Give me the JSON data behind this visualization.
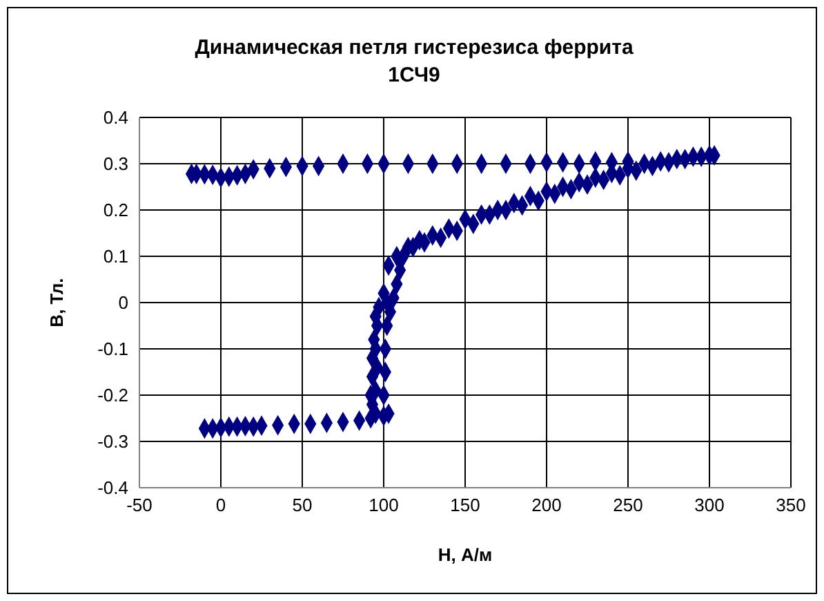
{
  "chart_data": {
    "type": "scatter",
    "title": "Динамическая петля гистерезиса феррита 1СЧ9",
    "xlabel": "H, А/м",
    "ylabel": "B, Тл.",
    "xlim": [
      -50,
      350
    ],
    "xticks": [
      -50,
      0,
      50,
      100,
      150,
      200,
      250,
      300,
      350
    ],
    "ylim": [
      -0.4,
      0.4
    ],
    "yticks": [
      -0.4,
      -0.3,
      -0.2,
      -0.1,
      0,
      0.1,
      0.2,
      0.3,
      0.4
    ],
    "grid": true,
    "legend": false,
    "marker": "diamond",
    "series": [
      {
        "color": "#000080",
        "x": [
          303,
          295,
          285,
          275,
          265,
          255,
          245,
          235,
          225,
          215,
          205,
          195,
          185,
          175,
          165,
          155,
          145,
          135,
          125,
          118,
          112,
          110,
          108,
          106,
          104,
          102,
          101,
          101,
          100,
          103,
          108,
          115,
          122,
          130,
          140,
          150,
          160,
          170,
          180,
          190,
          200,
          210,
          220,
          230,
          240,
          250,
          260,
          270,
          280,
          290,
          300
        ],
        "values": [
          0.318,
          0.315,
          0.31,
          0.303,
          0.295,
          0.285,
          0.275,
          0.265,
          0.255,
          0.245,
          0.235,
          0.22,
          0.21,
          0.2,
          0.19,
          0.17,
          0.155,
          0.14,
          0.13,
          0.12,
          0.1,
          0.07,
          0.04,
          0.01,
          -0.02,
          -0.05,
          -0.1,
          -0.15,
          -0.2,
          0.08,
          0.1,
          0.12,
          0.135,
          0.145,
          0.16,
          0.18,
          0.19,
          0.2,
          0.215,
          0.23,
          0.24,
          0.25,
          0.26,
          0.27,
          0.28,
          0.29,
          0.3,
          0.305,
          0.31,
          0.315,
          0.318
        ]
      },
      {
        "color": "#000080",
        "x": [
          250,
          240,
          230,
          220,
          210,
          200,
          190,
          175,
          160,
          145,
          130,
          115,
          100,
          90,
          75,
          60,
          50,
          40,
          30,
          20,
          -5,
          -10,
          -15,
          -18,
          0,
          5,
          10,
          15
        ],
        "values": [
          0.305,
          0.303,
          0.305,
          0.3,
          0.303,
          0.303,
          0.3,
          0.3,
          0.3,
          0.3,
          0.3,
          0.3,
          0.3,
          0.3,
          0.3,
          0.295,
          0.295,
          0.293,
          0.29,
          0.288,
          0.276,
          0.277,
          0.278,
          0.278,
          0.27,
          0.272,
          0.275,
          0.278
        ]
      },
      {
        "color": "#000080",
        "x": [
          -10,
          -5,
          0,
          5,
          10,
          15,
          20,
          25,
          35,
          45,
          55,
          65,
          75,
          85,
          92,
          100,
          103,
          95,
          93,
          92,
          95,
          93,
          96,
          93,
          95,
          94,
          96,
          95,
          97,
          100,
          102
        ],
        "values": [
          -0.272,
          -0.272,
          -0.27,
          -0.268,
          -0.268,
          -0.267,
          -0.268,
          -0.266,
          -0.265,
          -0.262,
          -0.262,
          -0.26,
          -0.258,
          -0.255,
          -0.25,
          -0.245,
          -0.24,
          -0.24,
          -0.22,
          -0.2,
          -0.19,
          -0.16,
          -0.14,
          -0.12,
          -0.1,
          -0.08,
          -0.05,
          -0.03,
          -0.01,
          0.02,
          0.0
        ]
      }
    ]
  }
}
